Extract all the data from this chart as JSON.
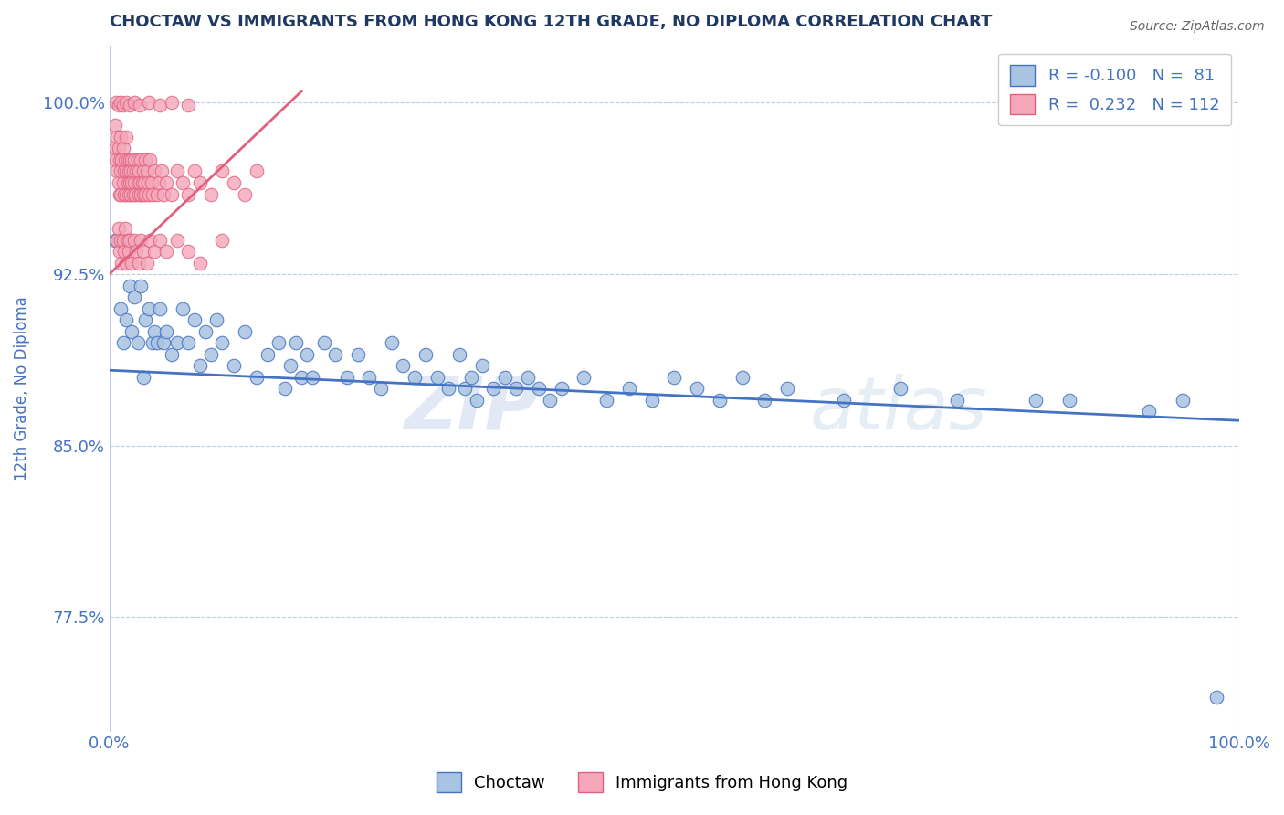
{
  "title": "CHOCTAW VS IMMIGRANTS FROM HONG KONG 12TH GRADE, NO DIPLOMA CORRELATION CHART",
  "source": "Source: ZipAtlas.com",
  "ylabel": "12th Grade, No Diploma",
  "blue_label": "Choctaw",
  "pink_label": "Immigrants from Hong Kong",
  "blue_R": -0.1,
  "blue_N": 81,
  "pink_R": 0.232,
  "pink_N": 112,
  "blue_color": "#a8c4e0",
  "blue_edge_color": "#4472c4",
  "pink_color": "#f4a7b9",
  "pink_edge_color": "#e06080",
  "blue_line_color": "#4472c4",
  "pink_line_color": "#e06080",
  "title_color": "#1f3864",
  "axis_color": "#4472c4",
  "grid_color": "#b8cce4",
  "watermark": "ZIPatlas",
  "xlim": [
    0.0,
    1.0
  ],
  "ylim": [
    0.725,
    1.025
  ],
  "yticks": [
    0.775,
    0.85,
    0.925,
    1.0
  ],
  "ytick_labels": [
    "77.5%",
    "85.0%",
    "92.5%",
    "100.0%"
  ],
  "xtick_labels": [
    "0.0%",
    "100.0%"
  ],
  "blue_scatter_x": [
    0.005,
    0.01,
    0.012,
    0.015,
    0.018,
    0.02,
    0.022,
    0.025,
    0.028,
    0.03,
    0.032,
    0.035,
    0.038,
    0.04,
    0.042,
    0.045,
    0.048,
    0.05,
    0.055,
    0.06,
    0.065,
    0.07,
    0.075,
    0.08,
    0.085,
    0.09,
    0.095,
    0.1,
    0.11,
    0.12,
    0.13,
    0.14,
    0.15,
    0.155,
    0.16,
    0.165,
    0.17,
    0.175,
    0.18,
    0.19,
    0.2,
    0.21,
    0.22,
    0.23,
    0.24,
    0.25,
    0.26,
    0.27,
    0.28,
    0.29,
    0.3,
    0.31,
    0.315,
    0.32,
    0.325,
    0.33,
    0.34,
    0.35,
    0.36,
    0.37,
    0.38,
    0.39,
    0.4,
    0.42,
    0.44,
    0.46,
    0.48,
    0.5,
    0.52,
    0.54,
    0.56,
    0.58,
    0.6,
    0.65,
    0.7,
    0.75,
    0.82,
    0.85,
    0.92,
    0.95,
    0.98
  ],
  "blue_scatter_y": [
    0.94,
    0.91,
    0.895,
    0.905,
    0.92,
    0.9,
    0.915,
    0.895,
    0.92,
    0.88,
    0.905,
    0.91,
    0.895,
    0.9,
    0.895,
    0.91,
    0.895,
    0.9,
    0.89,
    0.895,
    0.91,
    0.895,
    0.905,
    0.885,
    0.9,
    0.89,
    0.905,
    0.895,
    0.885,
    0.9,
    0.88,
    0.89,
    0.895,
    0.875,
    0.885,
    0.895,
    0.88,
    0.89,
    0.88,
    0.895,
    0.89,
    0.88,
    0.89,
    0.88,
    0.875,
    0.895,
    0.885,
    0.88,
    0.89,
    0.88,
    0.875,
    0.89,
    0.875,
    0.88,
    0.87,
    0.885,
    0.875,
    0.88,
    0.875,
    0.88,
    0.875,
    0.87,
    0.875,
    0.88,
    0.87,
    0.875,
    0.87,
    0.88,
    0.875,
    0.87,
    0.88,
    0.87,
    0.875,
    0.87,
    0.875,
    0.87,
    0.87,
    0.87,
    0.865,
    0.87,
    0.74
  ],
  "pink_scatter_x": [
    0.005,
    0.005,
    0.006,
    0.007,
    0.007,
    0.008,
    0.008,
    0.009,
    0.009,
    0.01,
    0.01,
    0.01,
    0.011,
    0.012,
    0.012,
    0.013,
    0.013,
    0.014,
    0.015,
    0.015,
    0.015,
    0.016,
    0.016,
    0.017,
    0.017,
    0.018,
    0.018,
    0.019,
    0.019,
    0.02,
    0.02,
    0.021,
    0.021,
    0.022,
    0.022,
    0.023,
    0.024,
    0.025,
    0.025,
    0.026,
    0.026,
    0.027,
    0.028,
    0.028,
    0.029,
    0.03,
    0.03,
    0.031,
    0.032,
    0.032,
    0.033,
    0.034,
    0.035,
    0.036,
    0.037,
    0.038,
    0.04,
    0.042,
    0.044,
    0.046,
    0.048,
    0.05,
    0.055,
    0.06,
    0.065,
    0.07,
    0.075,
    0.08,
    0.09,
    0.1,
    0.11,
    0.12,
    0.13,
    0.007,
    0.008,
    0.009,
    0.01,
    0.011,
    0.012,
    0.013,
    0.014,
    0.015,
    0.016,
    0.017,
    0.018,
    0.02,
    0.022,
    0.024,
    0.026,
    0.028,
    0.03,
    0.033,
    0.036,
    0.04,
    0.045,
    0.05,
    0.06,
    0.07,
    0.08,
    0.1,
    0.006,
    0.008,
    0.01,
    0.012,
    0.015,
    0.018,
    0.022,
    0.027,
    0.035,
    0.045,
    0.055,
    0.07
  ],
  "pink_scatter_y": [
    0.99,
    0.98,
    0.975,
    0.985,
    0.97,
    0.98,
    0.965,
    0.975,
    0.96,
    0.985,
    0.97,
    0.96,
    0.975,
    0.965,
    0.98,
    0.97,
    0.96,
    0.975,
    0.985,
    0.97,
    0.96,
    0.975,
    0.965,
    0.97,
    0.96,
    0.975,
    0.965,
    0.97,
    0.96,
    0.975,
    0.965,
    0.96,
    0.97,
    0.965,
    0.975,
    0.96,
    0.97,
    0.965,
    0.975,
    0.96,
    0.97,
    0.965,
    0.96,
    0.975,
    0.965,
    0.96,
    0.97,
    0.965,
    0.975,
    0.96,
    0.97,
    0.965,
    0.96,
    0.975,
    0.965,
    0.96,
    0.97,
    0.96,
    0.965,
    0.97,
    0.96,
    0.965,
    0.96,
    0.97,
    0.965,
    0.96,
    0.97,
    0.965,
    0.96,
    0.97,
    0.965,
    0.96,
    0.97,
    0.94,
    0.945,
    0.935,
    0.94,
    0.93,
    0.94,
    0.935,
    0.945,
    0.93,
    0.94,
    0.935,
    0.94,
    0.93,
    0.94,
    0.935,
    0.93,
    0.94,
    0.935,
    0.93,
    0.94,
    0.935,
    0.94,
    0.935,
    0.94,
    0.935,
    0.93,
    0.94,
    1.0,
    0.999,
    1.0,
    0.999,
    1.0,
    0.999,
    1.0,
    0.999,
    1.0,
    0.999,
    1.0,
    0.999
  ],
  "pink_line_x": [
    0.0,
    0.17
  ],
  "pink_line_y_start": 0.925,
  "pink_line_y_end": 1.005,
  "blue_line_x": [
    0.0,
    1.0
  ],
  "blue_line_y_start": 0.883,
  "blue_line_y_end": 0.861
}
